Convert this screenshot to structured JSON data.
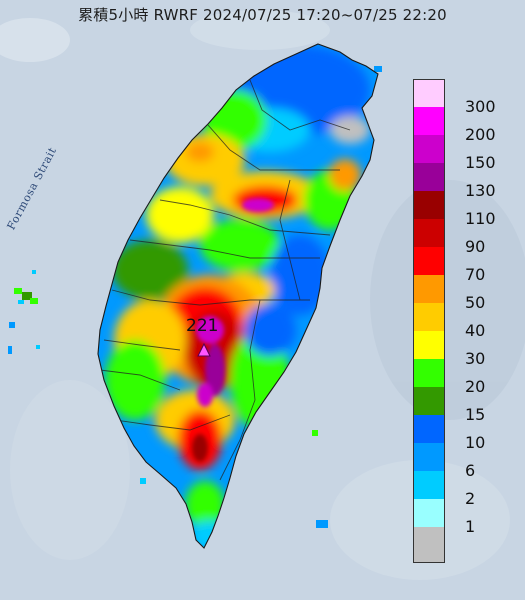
{
  "title": "累積5小時 RWRF 2024/07/25 17:20~07/25 22:20",
  "strait_label": "Formosa Strait",
  "peak_value": "221",
  "legend": {
    "items": [
      {
        "label": "300",
        "color": "#ffccff"
      },
      {
        "label": "200",
        "color": "#ff00ff"
      },
      {
        "label": "150",
        "color": "#cc00cc"
      },
      {
        "label": "130",
        "color": "#990099"
      },
      {
        "label": "110",
        "color": "#990000"
      },
      {
        "label": "90",
        "color": "#cc0000"
      },
      {
        "label": "70",
        "color": "#ff0000"
      },
      {
        "label": "50",
        "color": "#ff9900"
      },
      {
        "label": "40",
        "color": "#ffcc00"
      },
      {
        "label": "30",
        "color": "#ffff00"
      },
      {
        "label": "20",
        "color": "#33ff00"
      },
      {
        "label": "15",
        "color": "#339900"
      },
      {
        "label": "10",
        "color": "#0066ff"
      },
      {
        "label": "6",
        "color": "#0099ff"
      },
      {
        "label": "2",
        "color": "#00ccff"
      },
      {
        "label": "1",
        "color": "#99ffff"
      },
      {
        "label": "",
        "color": "#c0c0c0"
      }
    ]
  }
}
